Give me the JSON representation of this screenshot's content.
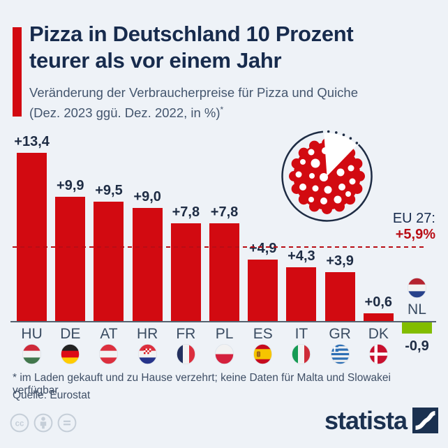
{
  "header": {
    "title_line1": "Pizza in Deutschland 10 Prozent",
    "title_line2": "teurer als vor einem Jahr",
    "subtitle_line1": "Veränderung der Verbraucherpreise für Pizza und Quiche",
    "subtitle_line2": "(Dez. 2023 ggü. Dez. 2022, in %)",
    "footnote_marker": "*"
  },
  "chart_data": {
    "type": "bar",
    "title": "Veränderung der Verbraucherpreise für Pizza und Quiche (Dez. 2023 ggü. Dez. 2022, in %)",
    "categories": [
      "HU",
      "DE",
      "AT",
      "HR",
      "FR",
      "PL",
      "ES",
      "IT",
      "GR",
      "DK",
      "NL"
    ],
    "values": [
      13.4,
      9.9,
      9.5,
      9.0,
      7.8,
      7.8,
      4.9,
      4.3,
      3.9,
      0.6,
      -0.9
    ],
    "value_labels": [
      "+13,4",
      "+9,9",
      "+9,5",
      "+9,0",
      "+7,8",
      "+7,8",
      "+4,9",
      "+4,3",
      "+3,9",
      "+0,6",
      "-0,9"
    ],
    "reference_line": {
      "label": "EU 27:",
      "value": 5.9,
      "value_label": "+5,9%"
    },
    "colors": {
      "bar_positive": "#d20a11",
      "bar_negative": "#82bd00",
      "reference": "#b90d15",
      "axis": "#55626f"
    },
    "flags": {
      "HU": {
        "type": "h",
        "colors": [
          "#ce2939",
          "#f2f2f2",
          "#42774c"
        ]
      },
      "DE": {
        "type": "h",
        "colors": [
          "#222222",
          "#dd0b15",
          "#ffcc00"
        ]
      },
      "AT": {
        "type": "h",
        "colors": [
          "#dc2f3e",
          "#f2f2f2",
          "#dc2f3e"
        ]
      },
      "HR": {
        "type": "h",
        "colors": [
          "#dc2f3e",
          "#f2f2f2",
          "#27348b"
        ],
        "overlay": "checker"
      },
      "FR": {
        "type": "v",
        "colors": [
          "#23305e",
          "#f2f2f2",
          "#dc2f3e"
        ]
      },
      "PL": {
        "type": "h",
        "colors": [
          "#f2f2f2",
          "#d4213d"
        ]
      },
      "ES": {
        "type": "h",
        "colors": [
          "#c60b1e",
          "#f6c500",
          "#c60b1e"
        ],
        "weights": [
          1,
          2,
          1
        ],
        "overlay": "emblem"
      },
      "IT": {
        "type": "v",
        "colors": [
          "#169b54",
          "#f2f2f2",
          "#ce2b37"
        ]
      },
      "GR": {
        "type": "stripes9",
        "colors": [
          "#2d6fb5",
          "#f2f2f2"
        ],
        "overlay": "greekcross"
      },
      "DK": {
        "type": "h",
        "colors": [
          "#c8102e"
        ],
        "overlay": "nordic"
      },
      "NL": {
        "type": "h",
        "colors": [
          "#b5232f",
          "#f2f2f2",
          "#27418b"
        ]
      }
    }
  },
  "footer": {
    "footnote": "* im Laden gekauft und zu Hause verzehrt; keine Daten für Malta und Slowakei verfügbar",
    "source": "Quelle: Eurostat",
    "brand": "statista"
  }
}
